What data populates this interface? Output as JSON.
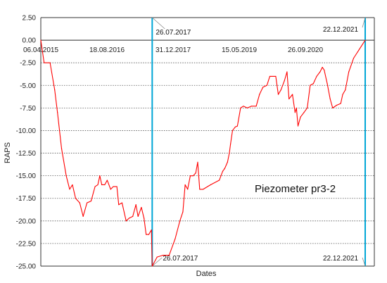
{
  "chart_data": {
    "type": "line",
    "xlabel": "Dates",
    "ylabel": "RAPS",
    "xlim": [
      "2015-04-06",
      "2022-03-01"
    ],
    "ylim": [
      -25,
      2.5
    ],
    "y_ticks": [
      2.5,
      0,
      -2.5,
      -5,
      -7.5,
      -10,
      -12.5,
      -15,
      -17.5,
      -20,
      -22.5,
      -25
    ],
    "y_tick_labels": [
      "2.50",
      "0.00",
      "-2.50",
      "-5.00",
      "-7.50",
      "-10.00",
      "-12.50",
      "-15.00",
      "-17.50",
      "-20.00",
      "-22.50",
      "-25.00"
    ],
    "x_ticks": [
      "2015-04-06",
      "2016-08-18",
      "2017-12-31",
      "2019-05-15",
      "2020-09-26"
    ],
    "x_tick_labels": [
      "06.04.2015",
      "18.08.2016",
      "31.12.2017",
      "15.05.2019",
      "26.09.2020"
    ],
    "grid": "horizontal dotted",
    "annotation": "Piezometer pr3-2",
    "line_color": "#ff0000",
    "marker_color": "#00a6d6",
    "markers": [
      {
        "date": "2017-07-26",
        "label": "26.07.2017"
      },
      {
        "date": "2021-12-22",
        "label": "22.12.2021"
      }
    ],
    "series": [
      {
        "points": [
          [
            "2015-04-06",
            0.0
          ],
          [
            "2015-05-01",
            -2.5
          ],
          [
            "2015-06-15",
            -2.5
          ],
          [
            "2015-07-20",
            -5.5
          ],
          [
            "2015-08-10",
            -8.0
          ],
          [
            "2015-09-10",
            -12.0
          ],
          [
            "2015-10-15",
            -15.0
          ],
          [
            "2015-11-10",
            -16.5
          ],
          [
            "2015-12-01",
            -16.0
          ],
          [
            "2015-12-25",
            -17.5
          ],
          [
            "2016-01-25",
            -18.0
          ],
          [
            "2016-02-20",
            -19.5
          ],
          [
            "2016-03-20",
            -18.0
          ],
          [
            "2016-04-20",
            -17.8
          ],
          [
            "2016-05-20",
            -16.2
          ],
          [
            "2016-06-10",
            -16.0
          ],
          [
            "2016-06-25",
            -15.0
          ],
          [
            "2016-07-10",
            -16.0
          ],
          [
            "2016-08-01",
            -16.0
          ],
          [
            "2016-08-20",
            -15.5
          ],
          [
            "2016-09-15",
            -16.5
          ],
          [
            "2016-10-05",
            -16.2
          ],
          [
            "2016-11-01",
            -16.2
          ],
          [
            "2016-11-15",
            -18.2
          ],
          [
            "2016-12-10",
            -18.0
          ],
          [
            "2017-01-10",
            -20.0
          ],
          [
            "2017-02-01",
            -19.7
          ],
          [
            "2017-03-01",
            -19.5
          ],
          [
            "2017-03-25",
            -18.2
          ],
          [
            "2017-04-10",
            -19.5
          ],
          [
            "2017-05-05",
            -18.5
          ],
          [
            "2017-05-25",
            -19.7
          ],
          [
            "2017-06-10",
            -21.5
          ],
          [
            "2017-06-30",
            -21.5
          ],
          [
            "2017-07-20",
            -21.0
          ],
          [
            "2017-07-26",
            -25.0
          ],
          [
            "2017-09-01",
            -24.0
          ],
          [
            "2017-10-15",
            -23.8
          ],
          [
            "2017-12-01",
            -23.8
          ],
          [
            "2018-01-15",
            -22.0
          ],
          [
            "2018-02-20",
            -20.0
          ],
          [
            "2018-03-15",
            -19.0
          ],
          [
            "2018-04-01",
            -16.0
          ],
          [
            "2018-04-20",
            -16.5
          ],
          [
            "2018-05-10",
            -15.0
          ],
          [
            "2018-06-01",
            -15.0
          ],
          [
            "2018-06-20",
            -14.7
          ],
          [
            "2018-07-05",
            -13.5
          ],
          [
            "2018-07-20",
            -16.5
          ],
          [
            "2018-08-15",
            -16.5
          ],
          [
            "2018-10-10",
            -16.0
          ],
          [
            "2018-12-15",
            -15.5
          ],
          [
            "2019-01-10",
            -14.5
          ],
          [
            "2019-01-25",
            -14.2
          ],
          [
            "2019-02-15",
            -13.5
          ],
          [
            "2019-03-01",
            -12.5
          ],
          [
            "2019-03-10",
            -11.5
          ],
          [
            "2019-03-25",
            -10.0
          ],
          [
            "2019-04-15",
            -9.6
          ],
          [
            "2019-05-01",
            -9.5
          ],
          [
            "2019-05-25",
            -7.5
          ],
          [
            "2019-06-15",
            -7.3
          ],
          [
            "2019-07-15",
            -7.5
          ],
          [
            "2019-08-15",
            -7.3
          ],
          [
            "2019-09-20",
            -7.3
          ],
          [
            "2019-10-15",
            -6.0
          ],
          [
            "2019-11-10",
            -5.2
          ],
          [
            "2019-12-10",
            -5.0
          ],
          [
            "2020-01-01",
            -4.0
          ],
          [
            "2020-02-15",
            -4.0
          ],
          [
            "2020-03-05",
            -6.0
          ],
          [
            "2020-03-25",
            -5.5
          ],
          [
            "2020-04-20",
            -4.5
          ],
          [
            "2020-05-10",
            -3.5
          ],
          [
            "2020-05-25",
            -6.5
          ],
          [
            "2020-06-20",
            -6.0
          ],
          [
            "2020-07-10",
            -8.0
          ],
          [
            "2020-07-20",
            -7.5
          ],
          [
            "2020-08-01",
            -9.5
          ],
          [
            "2020-08-20",
            -8.5
          ],
          [
            "2020-09-15",
            -8.0
          ],
          [
            "2020-10-10",
            -7.5
          ],
          [
            "2020-11-01",
            -5.0
          ],
          [
            "2020-11-25",
            -4.8
          ],
          [
            "2020-12-20",
            -4.0
          ],
          [
            "2021-01-15",
            -3.5
          ],
          [
            "2021-02-01",
            -3.0
          ],
          [
            "2021-02-15",
            -3.3
          ],
          [
            "2021-03-10",
            -4.8
          ],
          [
            "2021-04-01",
            -6.5
          ],
          [
            "2021-04-20",
            -7.5
          ],
          [
            "2021-05-20",
            -7.2
          ],
          [
            "2021-06-20",
            -7.0
          ],
          [
            "2021-07-05",
            -6.0
          ],
          [
            "2021-07-25",
            -5.5
          ],
          [
            "2021-08-20",
            -3.5
          ],
          [
            "2021-09-25",
            -2.0
          ],
          [
            "2021-12-22",
            0.0
          ]
        ]
      }
    ]
  }
}
